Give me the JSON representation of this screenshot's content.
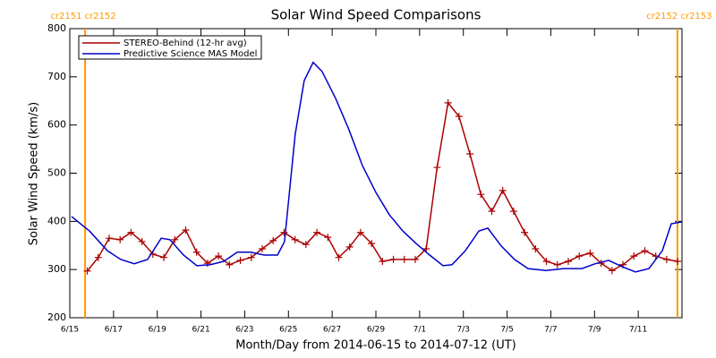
{
  "chart_data": {
    "type": "line",
    "title": "Solar Wind Speed Comparisons",
    "x_label": "Month/Day from 2014-06-15 to 2014-07-12 (UT)",
    "y_label": "Solar Wind Speed (km/s)",
    "xlim": [
      0,
      28
    ],
    "ylim": [
      200,
      800
    ],
    "xticks": [
      {
        "value": 0,
        "label": "6/15"
      },
      {
        "value": 2,
        "label": "6/17"
      },
      {
        "value": 4,
        "label": "6/19"
      },
      {
        "value": 6,
        "label": "6/21"
      },
      {
        "value": 8,
        "label": "6/23"
      },
      {
        "value": 10,
        "label": "6/25"
      },
      {
        "value": 12,
        "label": "6/27"
      },
      {
        "value": 14,
        "label": "6/29"
      },
      {
        "value": 16,
        "label": "7/1"
      },
      {
        "value": 18,
        "label": "7/3"
      },
      {
        "value": 20,
        "label": "7/5"
      },
      {
        "value": 22,
        "label": "7/7"
      },
      {
        "value": 24,
        "label": "7/9"
      },
      {
        "value": 26,
        "label": "7/11"
      }
    ],
    "yticks": [
      200,
      300,
      400,
      500,
      600,
      700,
      800
    ],
    "boundaries": [
      {
        "x": 0.7,
        "label": "cr2151 cr2152",
        "color": "#ff9900"
      },
      {
        "x": 27.79,
        "label": "cr2152 cr2153",
        "color": "#ff9900"
      }
    ],
    "series": [
      {
        "name": "STEREO-Behind (12-hr avg)",
        "color": "#aa0000",
        "markers": true,
        "x": [
          0.8,
          1.3,
          1.8,
          2.3,
          2.8,
          3.3,
          3.8,
          4.3,
          4.8,
          5.3,
          5.8,
          6.3,
          6.8,
          7.3,
          7.8,
          8.3,
          8.8,
          9.3,
          9.8,
          10.3,
          10.8,
          11.3,
          11.8,
          12.3,
          12.8,
          13.3,
          13.8,
          14.3,
          14.8,
          15.3,
          15.8,
          16.3,
          16.8,
          17.3,
          17.8,
          18.3,
          18.8,
          19.3,
          19.8,
          20.3,
          20.8,
          21.3,
          21.8,
          22.3,
          22.8,
          23.3,
          23.8,
          24.3,
          24.8,
          25.3,
          25.8,
          26.3,
          26.8,
          27.3,
          27.8
        ],
        "values": [
          297,
          325,
          365,
          362,
          377,
          358,
          332,
          325,
          362,
          382,
          336,
          313,
          328,
          310,
          319,
          325,
          343,
          360,
          377,
          362,
          352,
          377,
          367,
          325,
          347,
          377,
          354,
          317,
          321,
          321,
          321,
          343,
          512,
          646,
          618,
          540,
          456,
          421,
          464,
          421,
          377,
          343,
          317,
          310,
          317,
          328,
          334,
          313,
          298,
          310,
          328,
          339,
          328,
          321,
          317
        ]
      },
      {
        "name": "Predictive Science MAS Model",
        "color": "#0000cc",
        "markers": false,
        "x": [
          0.08,
          0.9,
          1.72,
          2.33,
          2.95,
          3.56,
          4.18,
          4.58,
          5.2,
          5.81,
          6.43,
          7.04,
          7.66,
          8.27,
          8.89,
          9.5,
          9.82,
          10.31,
          10.72,
          11.13,
          11.54,
          12.16,
          12.77,
          13.38,
          14,
          14.61,
          15.23,
          15.84,
          16.46,
          17.07,
          17.48,
          18.09,
          18.71,
          19.12,
          19.73,
          20.34,
          20.96,
          21.78,
          22.6,
          23.42,
          24.03,
          24.65,
          25.26,
          25.87,
          26.49,
          27.1,
          27.51,
          28
        ],
        "values": [
          410,
          380,
          339,
          321,
          312,
          321,
          365,
          362,
          330,
          308,
          310,
          317,
          336,
          336,
          330,
          330,
          358,
          581,
          692,
          730,
          711,
          655,
          590,
          516,
          460,
          414,
          380,
          354,
          330,
          308,
          310,
          339,
          380,
          386,
          349,
          321,
          302,
          298,
          302,
          302,
          312,
          319,
          306,
          295,
          302,
          339,
          395,
          399
        ]
      }
    ]
  }
}
